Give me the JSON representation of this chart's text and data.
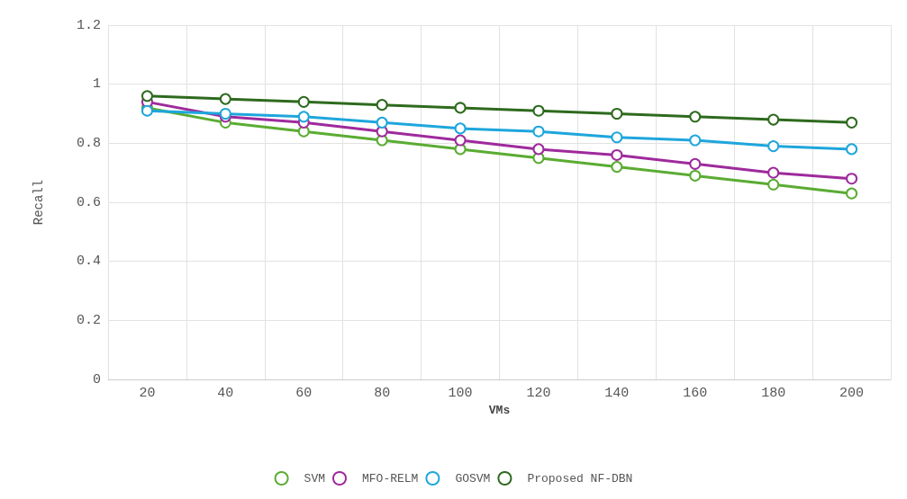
{
  "chart_data": {
    "type": "line",
    "xlabel": "VMs",
    "ylabel": "Recall",
    "categories": [
      "20",
      "40",
      "60",
      "80",
      "100",
      "120",
      "140",
      "160",
      "180",
      "200"
    ],
    "series": [
      {
        "name": "SVM",
        "color": "#5aac32",
        "values": [
          0.92,
          0.87,
          0.84,
          0.81,
          0.78,
          0.75,
          0.72,
          0.69,
          0.66,
          0.63
        ]
      },
      {
        "name": "MFO-RELM",
        "color": "#9e2a9c",
        "values": [
          0.94,
          0.89,
          0.87,
          0.84,
          0.81,
          0.78,
          0.76,
          0.73,
          0.7,
          0.68
        ]
      },
      {
        "name": "GOSVM",
        "color": "#1ea6dc",
        "values": [
          0.91,
          0.9,
          0.89,
          0.87,
          0.85,
          0.84,
          0.82,
          0.81,
          0.79,
          0.78
        ]
      },
      {
        "name": "Proposed NF-DBN",
        "color": "#2e6a1e",
        "values": [
          0.96,
          0.95,
          0.94,
          0.93,
          0.92,
          0.91,
          0.9,
          0.89,
          0.88,
          0.87
        ]
      }
    ],
    "ylim": [
      0,
      1.2
    ],
    "yticks": [
      0,
      {
        "value": 0.2,
        "label": "0.2"
      },
      {
        "value": 0.4,
        "label": "0.4"
      },
      {
        "value": 0.6,
        "label": "0.6"
      },
      {
        "value": 0.8,
        "label": "0.8"
      },
      1,
      {
        "value": 1.2,
        "label": "1.2"
      }
    ],
    "grid": true,
    "legend": "bottom",
    "marker": "circle",
    "line_style": "solid"
  }
}
